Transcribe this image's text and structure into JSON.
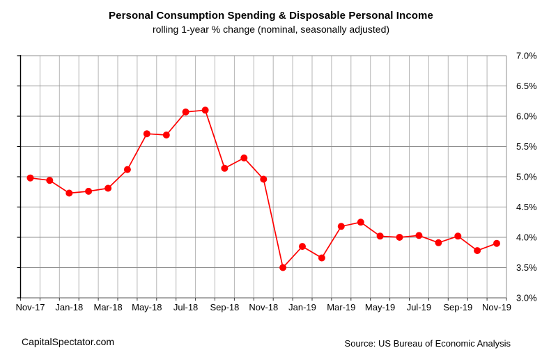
{
  "header": {
    "title": "Personal Consumption Spending & Disposable Personal Income",
    "subtitle": "rolling 1-year % change (nominal, seasonally adjusted)"
  },
  "footer": {
    "left": "CapitalSpectator.com",
    "right": "Source: US Bureau of Economic Analysis"
  },
  "chart_data": {
    "type": "line",
    "title": "Personal Consumption Spending & Disposable Personal Income",
    "subtitle": "rolling 1-year % change (nominal, seasonally adjusted)",
    "x": [
      "Nov-17",
      "Dec-17",
      "Jan-18",
      "Feb-18",
      "Mar-18",
      "Apr-18",
      "May-18",
      "Jun-18",
      "Jul-18",
      "Aug-18",
      "Sep-18",
      "Oct-18",
      "Nov-18",
      "Dec-18",
      "Jan-19",
      "Feb-19",
      "Mar-19",
      "Apr-19",
      "May-19",
      "Jun-19",
      "Jul-19",
      "Aug-19",
      "Sep-19",
      "Oct-19",
      "Nov-19"
    ],
    "series": [
      {
        "name": "rolling 1-year % change",
        "color": "#ff0000",
        "marker": "circle",
        "values": [
          4.98,
          4.94,
          4.73,
          4.76,
          4.81,
          5.12,
          5.71,
          5.69,
          6.07,
          6.1,
          5.14,
          5.31,
          4.96,
          3.5,
          3.85,
          3.66,
          4.18,
          4.25,
          4.02,
          4.0,
          4.03,
          3.91,
          4.02,
          3.78,
          3.9
        ]
      }
    ],
    "xlabel": "",
    "ylabel": "",
    "ylim": [
      3.0,
      7.0
    ],
    "ytick_step": 0.5,
    "ytick_labels": [
      "7.0%",
      "6.5%",
      "6.0%",
      "5.5%",
      "5.0%",
      "4.5%",
      "4.0%",
      "3.5%",
      "3.0%"
    ],
    "ytick_side": "right",
    "xtick_every": 2,
    "xtick_labels": [
      "Nov-17",
      "Jan-18",
      "Mar-18",
      "May-18",
      "Jul-18",
      "Sep-18",
      "Nov-18",
      "Jan-19",
      "Mar-19",
      "May-19",
      "Jul-19",
      "Sep-19",
      "Nov-19"
    ],
    "grid": {
      "horizontal": true,
      "vertical": true
    },
    "legend": "none",
    "colors": {
      "line": "#ff0000",
      "h_grid": "#8f8f8f",
      "v_grid": "#b5b5b5",
      "axis_left": "#000000",
      "axis_bottom": "#787878",
      "tick": "#3a3a3a",
      "text": "#000000",
      "background": "#ffffff"
    }
  }
}
